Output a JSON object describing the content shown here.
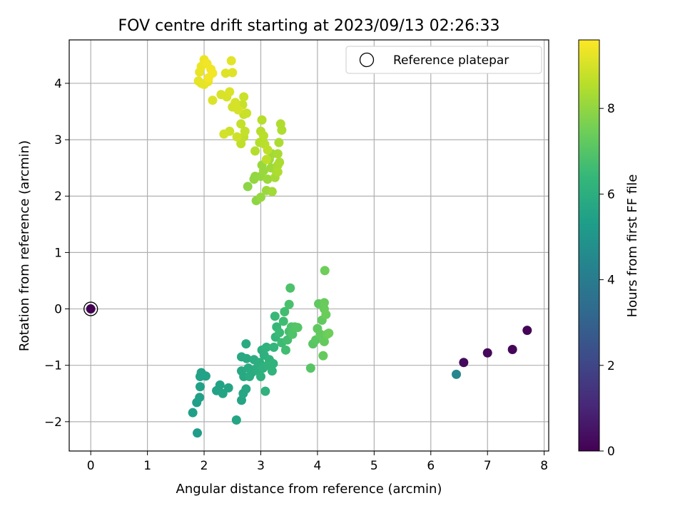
{
  "chart_data": {
    "type": "scatter",
    "title": "FOV centre drift starting at 2023/09/13 02:26:33",
    "xlabel": "Angular distance from reference (arcmin)",
    "ylabel": "Rotation from reference (arcmin)",
    "xlim": [
      -0.38,
      8.08
    ],
    "ylim": [
      -2.52,
      4.77
    ],
    "xticks": [
      0,
      1,
      2,
      3,
      4,
      5,
      6,
      7,
      8
    ],
    "yticks": [
      -2,
      -1,
      0,
      1,
      2,
      3,
      4
    ],
    "grid": true,
    "legend": {
      "placement": "top-right",
      "entries": [
        "Reference platepar"
      ]
    },
    "reference_point": {
      "x": 0,
      "y": 0
    },
    "colorbar": {
      "label": "Hours from first FF file",
      "range": [
        0,
        9.6
      ],
      "ticks": [
        0,
        2,
        4,
        6,
        8
      ],
      "colormap": "viridis"
    },
    "points": [
      {
        "x": 0.0,
        "y": 0.0,
        "h": 0.0
      },
      {
        "x": 7.7,
        "y": -0.38,
        "h": 0.1
      },
      {
        "x": 7.44,
        "y": -0.72,
        "h": 0.15
      },
      {
        "x": 7.0,
        "y": -0.78,
        "h": 0.2
      },
      {
        "x": 6.58,
        "y": -0.95,
        "h": 0.25
      },
      {
        "x": 6.45,
        "y": -1.16,
        "h": 4.4
      },
      {
        "x": 1.88,
        "y": -2.2,
        "h": 5.3
      },
      {
        "x": 1.8,
        "y": -1.84,
        "h": 5.4
      },
      {
        "x": 1.87,
        "y": -1.66,
        "h": 5.4
      },
      {
        "x": 1.92,
        "y": -1.57,
        "h": 5.45
      },
      {
        "x": 1.93,
        "y": -1.38,
        "h": 5.45
      },
      {
        "x": 1.93,
        "y": -1.2,
        "h": 5.5
      },
      {
        "x": 1.95,
        "y": -1.13,
        "h": 5.5
      },
      {
        "x": 2.03,
        "y": -1.19,
        "h": 5.5
      },
      {
        "x": 2.22,
        "y": -1.45,
        "h": 5.55
      },
      {
        "x": 2.28,
        "y": -1.35,
        "h": 5.55
      },
      {
        "x": 2.33,
        "y": -1.5,
        "h": 5.6
      },
      {
        "x": 2.43,
        "y": -1.4,
        "h": 5.6
      },
      {
        "x": 2.57,
        "y": -1.97,
        "h": 5.65
      },
      {
        "x": 2.66,
        "y": -1.62,
        "h": 5.65
      },
      {
        "x": 2.69,
        "y": -1.5,
        "h": 5.7
      },
      {
        "x": 2.74,
        "y": -1.42,
        "h": 5.7
      },
      {
        "x": 2.66,
        "y": -1.1,
        "h": 5.75
      },
      {
        "x": 2.66,
        "y": -0.85,
        "h": 5.75
      },
      {
        "x": 2.7,
        "y": -1.2,
        "h": 5.8
      },
      {
        "x": 2.75,
        "y": -0.88,
        "h": 5.8
      },
      {
        "x": 2.74,
        "y": -0.62,
        "h": 5.85
      },
      {
        "x": 2.78,
        "y": -1.05,
        "h": 5.85
      },
      {
        "x": 2.8,
        "y": -1.2,
        "h": 5.9
      },
      {
        "x": 2.84,
        "y": -1.13,
        "h": 5.9
      },
      {
        "x": 2.88,
        "y": -0.9,
        "h": 5.95
      },
      {
        "x": 2.93,
        "y": -1.05,
        "h": 5.95
      },
      {
        "x": 2.95,
        "y": -1.1,
        "h": 6.0
      },
      {
        "x": 2.98,
        "y": -0.95,
        "h": 6.0
      },
      {
        "x": 3.0,
        "y": -1.2,
        "h": 6.05
      },
      {
        "x": 3.02,
        "y": -0.73,
        "h": 6.05
      },
      {
        "x": 3.04,
        "y": -1.05,
        "h": 6.1
      },
      {
        "x": 3.06,
        "y": -0.82,
        "h": 6.1
      },
      {
        "x": 3.08,
        "y": -1.46,
        "h": 6.15
      },
      {
        "x": 3.1,
        "y": -0.68,
        "h": 6.15
      },
      {
        "x": 3.12,
        "y": -1.0,
        "h": 6.2
      },
      {
        "x": 3.15,
        "y": -0.9,
        "h": 6.2
      },
      {
        "x": 3.2,
        "y": -1.1,
        "h": 6.25
      },
      {
        "x": 3.22,
        "y": -0.97,
        "h": 6.25
      },
      {
        "x": 3.23,
        "y": -0.68,
        "h": 6.3
      },
      {
        "x": 3.26,
        "y": -0.5,
        "h": 6.35
      },
      {
        "x": 3.28,
        "y": -0.32,
        "h": 6.4
      },
      {
        "x": 3.25,
        "y": -0.13,
        "h": 6.45
      },
      {
        "x": 3.33,
        "y": -0.42,
        "h": 6.5
      },
      {
        "x": 3.37,
        "y": -0.6,
        "h": 6.55
      },
      {
        "x": 3.4,
        "y": -0.22,
        "h": 6.6
      },
      {
        "x": 3.42,
        "y": -0.05,
        "h": 6.65
      },
      {
        "x": 3.44,
        "y": -0.73,
        "h": 6.65
      },
      {
        "x": 3.47,
        "y": -0.55,
        "h": 6.7
      },
      {
        "x": 3.5,
        "y": -0.4,
        "h": 6.75
      },
      {
        "x": 3.5,
        "y": 0.08,
        "h": 6.8
      },
      {
        "x": 3.52,
        "y": 0.37,
        "h": 6.85
      },
      {
        "x": 3.54,
        "y": -0.32,
        "h": 6.85
      },
      {
        "x": 3.56,
        "y": -0.45,
        "h": 6.9
      },
      {
        "x": 3.6,
        "y": -0.32,
        "h": 6.95
      },
      {
        "x": 3.65,
        "y": -0.33,
        "h": 7.0
      },
      {
        "x": 3.88,
        "y": -1.05,
        "h": 7.05
      },
      {
        "x": 3.92,
        "y": -0.62,
        "h": 7.1
      },
      {
        "x": 3.97,
        "y": -0.55,
        "h": 7.15
      },
      {
        "x": 4.0,
        "y": -0.35,
        "h": 7.2
      },
      {
        "x": 4.02,
        "y": 0.09,
        "h": 7.2
      },
      {
        "x": 4.05,
        "y": -0.45,
        "h": 7.25
      },
      {
        "x": 4.08,
        "y": -0.2,
        "h": 7.25
      },
      {
        "x": 4.1,
        "y": -0.83,
        "h": 7.3
      },
      {
        "x": 4.12,
        "y": -0.58,
        "h": 7.3
      },
      {
        "x": 4.12,
        "y": 0.0,
        "h": 7.35
      },
      {
        "x": 4.12,
        "y": 0.11,
        "h": 7.35
      },
      {
        "x": 4.15,
        "y": -0.1,
        "h": 7.4
      },
      {
        "x": 4.17,
        "y": -0.45,
        "h": 7.4
      },
      {
        "x": 4.2,
        "y": -0.43,
        "h": 7.45
      },
      {
        "x": 4.13,
        "y": 0.68,
        "h": 7.45
      },
      {
        "x": 2.77,
        "y": 2.17,
        "h": 7.9
      },
      {
        "x": 2.92,
        "y": 1.92,
        "h": 7.95
      },
      {
        "x": 2.88,
        "y": 2.3,
        "h": 8.0
      },
      {
        "x": 2.9,
        "y": 2.35,
        "h": 8.0
      },
      {
        "x": 3.0,
        "y": 1.98,
        "h": 8.05
      },
      {
        "x": 3.0,
        "y": 2.35,
        "h": 8.05
      },
      {
        "x": 3.02,
        "y": 2.55,
        "h": 8.1
      },
      {
        "x": 3.05,
        "y": 2.45,
        "h": 8.1
      },
      {
        "x": 3.1,
        "y": 2.1,
        "h": 8.15
      },
      {
        "x": 3.12,
        "y": 2.3,
        "h": 8.15
      },
      {
        "x": 3.15,
        "y": 2.65,
        "h": 8.2
      },
      {
        "x": 3.18,
        "y": 2.5,
        "h": 8.2
      },
      {
        "x": 3.2,
        "y": 2.75,
        "h": 8.25
      },
      {
        "x": 3.2,
        "y": 2.08,
        "h": 8.25
      },
      {
        "x": 3.25,
        "y": 2.33,
        "h": 8.3
      },
      {
        "x": 3.27,
        "y": 2.45,
        "h": 8.3
      },
      {
        "x": 3.3,
        "y": 2.55,
        "h": 8.35
      },
      {
        "x": 3.3,
        "y": 2.75,
        "h": 8.35
      },
      {
        "x": 3.32,
        "y": 2.95,
        "h": 8.4
      },
      {
        "x": 3.33,
        "y": 2.6,
        "h": 8.4
      },
      {
        "x": 3.35,
        "y": 3.28,
        "h": 8.45
      },
      {
        "x": 3.37,
        "y": 3.17,
        "h": 8.45
      },
      {
        "x": 3.3,
        "y": 2.43,
        "h": 8.45
      },
      {
        "x": 2.9,
        "y": 2.8,
        "h": 8.5
      },
      {
        "x": 2.98,
        "y": 2.95,
        "h": 8.5
      },
      {
        "x": 3.0,
        "y": 3.15,
        "h": 8.55
      },
      {
        "x": 3.02,
        "y": 3.35,
        "h": 8.55
      },
      {
        "x": 3.05,
        "y": 3.07,
        "h": 8.6
      },
      {
        "x": 3.07,
        "y": 2.92,
        "h": 8.6
      },
      {
        "x": 3.1,
        "y": 2.65,
        "h": 8.65
      },
      {
        "x": 3.12,
        "y": 2.82,
        "h": 8.65
      },
      {
        "x": 2.65,
        "y": 2.93,
        "h": 8.7
      },
      {
        "x": 2.7,
        "y": 3.05,
        "h": 8.7
      },
      {
        "x": 2.72,
        "y": 3.15,
        "h": 8.75
      },
      {
        "x": 2.65,
        "y": 3.28,
        "h": 8.75
      },
      {
        "x": 2.68,
        "y": 3.62,
        "h": 8.8
      },
      {
        "x": 2.7,
        "y": 3.45,
        "h": 8.8
      },
      {
        "x": 2.75,
        "y": 3.47,
        "h": 8.85
      },
      {
        "x": 2.7,
        "y": 3.76,
        "h": 8.85
      },
      {
        "x": 2.58,
        "y": 3.05,
        "h": 8.9
      },
      {
        "x": 2.45,
        "y": 3.15,
        "h": 8.9
      },
      {
        "x": 2.35,
        "y": 3.1,
        "h": 8.95
      },
      {
        "x": 2.5,
        "y": 3.58,
        "h": 8.95
      },
      {
        "x": 2.55,
        "y": 3.66,
        "h": 9.0
      },
      {
        "x": 2.6,
        "y": 3.53,
        "h": 9.0
      },
      {
        "x": 2.4,
        "y": 3.76,
        "h": 9.05
      },
      {
        "x": 2.3,
        "y": 3.8,
        "h": 9.05
      },
      {
        "x": 2.15,
        "y": 3.7,
        "h": 9.1
      },
      {
        "x": 2.45,
        "y": 3.85,
        "h": 9.1
      },
      {
        "x": 2.38,
        "y": 4.18,
        "h": 9.15
      },
      {
        "x": 2.5,
        "y": 4.19,
        "h": 9.15
      },
      {
        "x": 2.48,
        "y": 4.4,
        "h": 9.2
      },
      {
        "x": 1.95,
        "y": 4.0,
        "h": 9.2
      },
      {
        "x": 1.9,
        "y": 4.04,
        "h": 9.25
      },
      {
        "x": 2.0,
        "y": 3.98,
        "h": 9.25
      },
      {
        "x": 2.07,
        "y": 4.03,
        "h": 9.3
      },
      {
        "x": 1.92,
        "y": 4.2,
        "h": 9.3
      },
      {
        "x": 1.95,
        "y": 4.3,
        "h": 9.35
      },
      {
        "x": 2.0,
        "y": 4.42,
        "h": 9.35
      },
      {
        "x": 2.05,
        "y": 4.35,
        "h": 9.4
      },
      {
        "x": 2.12,
        "y": 4.25,
        "h": 9.4
      },
      {
        "x": 2.08,
        "y": 4.1,
        "h": 9.45
      },
      {
        "x": 2.15,
        "y": 4.18,
        "h": 9.45
      }
    ]
  }
}
